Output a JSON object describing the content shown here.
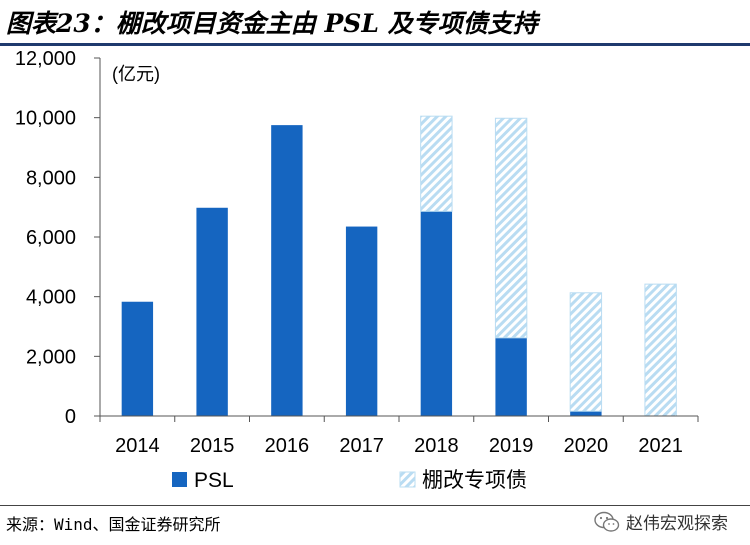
{
  "header": {
    "title": "图表23：棚改项目资金主由 PSL 及专项债支持"
  },
  "footer": {
    "source": "来源：Wind、国金证券研究所",
    "brand": "赵伟宏观探索",
    "brand_icon": "wechat-icon"
  },
  "chart_data": {
    "type": "bar",
    "stacked": true,
    "unit_label": "(亿元)",
    "categories": [
      "2014",
      "2015",
      "2016",
      "2017",
      "2018",
      "2019",
      "2020",
      "2021"
    ],
    "series": [
      {
        "name": "PSL",
        "values": [
          3830,
          6980,
          9750,
          6350,
          6860,
          2620,
          160,
          0
        ],
        "color": "#1565c0",
        "pattern": "solid"
      },
      {
        "name": "棚改专项债",
        "values": [
          0,
          0,
          0,
          0,
          3190,
          7360,
          3970,
          4420
        ],
        "color": "#b9dcf2",
        "pattern": "diagonal-hatch"
      }
    ],
    "ylim": [
      0,
      12000
    ],
    "yticks": [
      0,
      2000,
      4000,
      6000,
      8000,
      10000,
      12000
    ],
    "ytick_labels": [
      "0",
      "2,000",
      "4,000",
      "6,000",
      "8,000",
      "10,000",
      "12,000"
    ],
    "grid": false,
    "legend_position": "bottom"
  }
}
